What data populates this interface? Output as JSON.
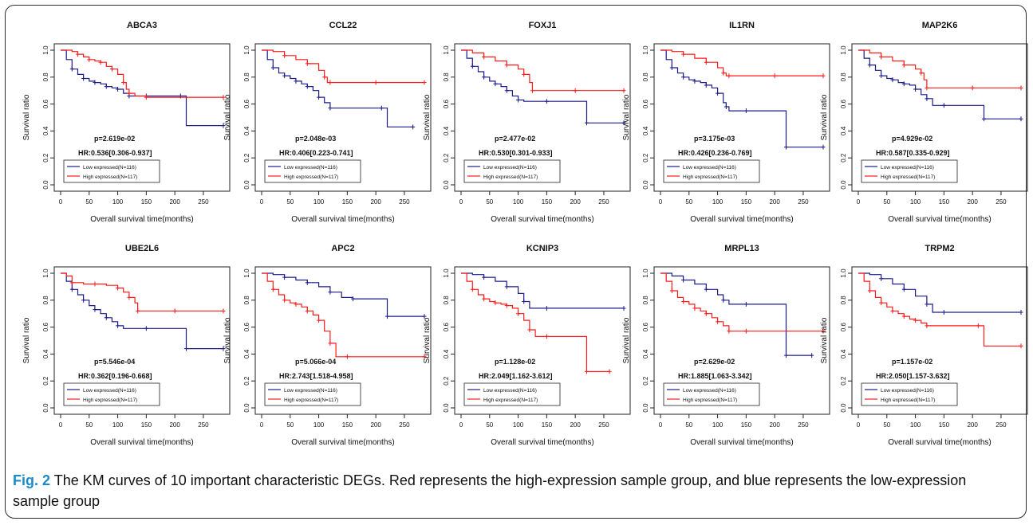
{
  "common": {
    "ylabel": "Survival ratio",
    "xlabel": "Overall survival time(months)",
    "xticks": [
      0,
      50,
      100,
      150,
      200,
      250
    ],
    "yticks": [
      0.0,
      0.2,
      0.4,
      0.6,
      0.8,
      1.0
    ],
    "ytick_labels": [
      "0.0",
      "0.2",
      "0.4",
      "0.6",
      "0.8",
      "1.0"
    ],
    "legend_low": "Low expressed(N=116)",
    "legend_high": "High expressed(N=117)",
    "low_color": "#1b1b8a",
    "high_color": "#ff1a1a"
  },
  "caption": {
    "label": "Fig. 2",
    "text": "The KM curves of 10 important characteristic DEGs. Red represents the high-expression sample group, and blue represents the low-expression sample group"
  },
  "chart_data": [
    {
      "type": "line",
      "title": "ABCA3",
      "p": "p=2.619e-02",
      "hr": "HR:0.536[0.306-0.937]",
      "xlim": [
        0,
        285
      ],
      "ylim": [
        0,
        1
      ],
      "series": [
        {
          "name": "Low expressed(N=116)",
          "x": [
            0,
            10,
            20,
            30,
            40,
            50,
            60,
            70,
            80,
            90,
            100,
            110,
            120,
            130,
            150,
            180,
            210,
            220,
            285
          ],
          "y": [
            1.0,
            0.93,
            0.86,
            0.82,
            0.79,
            0.77,
            0.76,
            0.75,
            0.73,
            0.72,
            0.71,
            0.68,
            0.66,
            0.66,
            0.66,
            0.66,
            0.66,
            0.44,
            0.44
          ]
        },
        {
          "name": "High expressed(N=117)",
          "x": [
            0,
            20,
            30,
            40,
            50,
            60,
            70,
            80,
            90,
            100,
            110,
            115,
            120,
            130,
            150,
            200,
            285
          ],
          "y": [
            1.0,
            0.99,
            0.97,
            0.95,
            0.93,
            0.92,
            0.91,
            0.88,
            0.86,
            0.82,
            0.76,
            0.71,
            0.68,
            0.66,
            0.65,
            0.65,
            0.65
          ]
        }
      ]
    },
    {
      "type": "line",
      "title": "CCL22",
      "p": "p=2.048e-03",
      "hr": "HR:0.406[0.223-0.741]",
      "xlim": [
        0,
        285
      ],
      "ylim": [
        0,
        1
      ],
      "series": [
        {
          "name": "Low expressed(N=116)",
          "x": [
            0,
            10,
            20,
            30,
            40,
            50,
            60,
            70,
            80,
            90,
            100,
            110,
            120,
            150,
            210,
            220,
            265
          ],
          "y": [
            1.0,
            0.93,
            0.87,
            0.83,
            0.81,
            0.79,
            0.77,
            0.75,
            0.73,
            0.7,
            0.65,
            0.61,
            0.57,
            0.57,
            0.57,
            0.43,
            0.43
          ]
        },
        {
          "name": "High expressed(N=117)",
          "x": [
            0,
            20,
            40,
            60,
            80,
            100,
            110,
            115,
            120,
            150,
            200,
            285
          ],
          "y": [
            1.0,
            0.99,
            0.96,
            0.93,
            0.9,
            0.85,
            0.8,
            0.76,
            0.76,
            0.76,
            0.76,
            0.76
          ]
        }
      ]
    },
    {
      "type": "line",
      "title": "FOXJ1",
      "p": "p=2.477e-02",
      "hr": "HR:0.530[0.301-0.933]",
      "xlim": [
        0,
        285
      ],
      "ylim": [
        0,
        1
      ],
      "series": [
        {
          "name": "Low expressed(N=116)",
          "x": [
            0,
            10,
            20,
            30,
            40,
            50,
            60,
            70,
            80,
            90,
            100,
            110,
            150,
            210,
            220,
            285
          ],
          "y": [
            1.0,
            0.94,
            0.88,
            0.84,
            0.8,
            0.77,
            0.75,
            0.73,
            0.7,
            0.66,
            0.63,
            0.62,
            0.62,
            0.62,
            0.46,
            0.46
          ]
        },
        {
          "name": "High expressed(N=117)",
          "x": [
            0,
            20,
            40,
            60,
            80,
            100,
            110,
            120,
            125,
            150,
            200,
            285
          ],
          "y": [
            1.0,
            0.98,
            0.95,
            0.92,
            0.89,
            0.86,
            0.82,
            0.76,
            0.7,
            0.7,
            0.7,
            0.7
          ]
        }
      ]
    },
    {
      "type": "line",
      "title": "IL1RN",
      "p": "p=3.175e-03",
      "hr": "HR:0.426[0.236-0.769]",
      "xlim": [
        0,
        285
      ],
      "ylim": [
        0,
        1
      ],
      "series": [
        {
          "name": "Low expressed(N=116)",
          "x": [
            0,
            10,
            20,
            30,
            40,
            50,
            60,
            70,
            80,
            90,
            100,
            110,
            115,
            120,
            150,
            210,
            220,
            285
          ],
          "y": [
            1.0,
            0.93,
            0.87,
            0.83,
            0.8,
            0.78,
            0.77,
            0.76,
            0.74,
            0.72,
            0.68,
            0.61,
            0.58,
            0.55,
            0.55,
            0.55,
            0.28,
            0.28
          ]
        },
        {
          "name": "High expressed(N=117)",
          "x": [
            0,
            20,
            40,
            60,
            80,
            100,
            110,
            115,
            120,
            150,
            200,
            285
          ],
          "y": [
            1.0,
            0.99,
            0.97,
            0.94,
            0.91,
            0.87,
            0.83,
            0.81,
            0.81,
            0.81,
            0.81,
            0.81
          ]
        }
      ]
    },
    {
      "type": "line",
      "title": "MAP2K6",
      "p": "p=4.929e-02",
      "hr": "HR:0.587[0.335-0.929]",
      "xlim": [
        0,
        285
      ],
      "ylim": [
        0,
        1
      ],
      "series": [
        {
          "name": "Low expressed(N=116)",
          "x": [
            0,
            10,
            20,
            30,
            40,
            50,
            60,
            70,
            80,
            90,
            100,
            110,
            120,
            130,
            150,
            210,
            220,
            285
          ],
          "y": [
            1.0,
            0.94,
            0.89,
            0.85,
            0.81,
            0.79,
            0.78,
            0.76,
            0.75,
            0.74,
            0.71,
            0.67,
            0.64,
            0.59,
            0.59,
            0.59,
            0.49,
            0.49
          ]
        },
        {
          "name": "High expressed(N=117)",
          "x": [
            0,
            20,
            40,
            60,
            80,
            100,
            110,
            115,
            120,
            150,
            200,
            285
          ],
          "y": [
            1.0,
            0.98,
            0.95,
            0.92,
            0.89,
            0.86,
            0.83,
            0.78,
            0.72,
            0.72,
            0.72,
            0.72
          ]
        }
      ]
    },
    {
      "type": "line",
      "title": "UBE2L6",
      "p": "p=5.546e-04",
      "hr": "HR:0.362[0.196-0.668]",
      "xlim": [
        0,
        285
      ],
      "ylim": [
        0,
        1
      ],
      "series": [
        {
          "name": "Low expressed(N=116)",
          "x": [
            0,
            10,
            20,
            30,
            40,
            50,
            60,
            70,
            80,
            90,
            100,
            110,
            150,
            210,
            220,
            285
          ],
          "y": [
            1.0,
            0.94,
            0.88,
            0.84,
            0.8,
            0.76,
            0.73,
            0.7,
            0.67,
            0.64,
            0.61,
            0.59,
            0.59,
            0.59,
            0.44,
            0.44
          ]
        },
        {
          "name": "High expressed(N=117)",
          "x": [
            0,
            10,
            20,
            40,
            60,
            80,
            100,
            110,
            120,
            130,
            135,
            150,
            200,
            285
          ],
          "y": [
            1.0,
            0.98,
            0.93,
            0.92,
            0.92,
            0.91,
            0.89,
            0.86,
            0.82,
            0.78,
            0.72,
            0.72,
            0.72,
            0.72
          ]
        }
      ]
    },
    {
      "type": "line",
      "title": "APC2",
      "p": "p=5.066e-04",
      "hr": "HR:2.743[1.518-4.958]",
      "xlim": [
        0,
        285
      ],
      "ylim": [
        0,
        1
      ],
      "series": [
        {
          "name": "Low expressed(N=116)",
          "x": [
            0,
            20,
            40,
            60,
            80,
            100,
            120,
            140,
            160,
            210,
            220,
            285
          ],
          "y": [
            1.0,
            0.99,
            0.97,
            0.95,
            0.93,
            0.9,
            0.86,
            0.82,
            0.81,
            0.81,
            0.68,
            0.68
          ]
        },
        {
          "name": "High expressed(N=117)",
          "x": [
            0,
            10,
            20,
            30,
            40,
            50,
            60,
            70,
            80,
            90,
            100,
            110,
            120,
            130,
            150,
            285
          ],
          "y": [
            1.0,
            0.94,
            0.88,
            0.84,
            0.8,
            0.78,
            0.77,
            0.75,
            0.72,
            0.69,
            0.65,
            0.57,
            0.48,
            0.38,
            0.38,
            0.38
          ]
        }
      ]
    },
    {
      "type": "line",
      "title": "KCNIP3",
      "p": "p=1.128e-02",
      "hr": "HR:2.049[1.162-3.612]",
      "xlim": [
        0,
        285
      ],
      "ylim": [
        0,
        1
      ],
      "series": [
        {
          "name": "Low expressed(N=116)",
          "x": [
            0,
            20,
            40,
            60,
            80,
            100,
            110,
            120,
            150,
            200,
            285
          ],
          "y": [
            1.0,
            0.99,
            0.97,
            0.94,
            0.9,
            0.85,
            0.79,
            0.74,
            0.74,
            0.74,
            0.74
          ]
        },
        {
          "name": "High expressed(N=117)",
          "x": [
            0,
            10,
            20,
            30,
            40,
            50,
            60,
            70,
            80,
            90,
            100,
            110,
            120,
            130,
            150,
            210,
            220,
            260
          ],
          "y": [
            1.0,
            0.94,
            0.88,
            0.84,
            0.81,
            0.79,
            0.78,
            0.77,
            0.76,
            0.74,
            0.7,
            0.65,
            0.58,
            0.53,
            0.53,
            0.53,
            0.27,
            0.27
          ]
        }
      ]
    },
    {
      "type": "line",
      "title": "MRPL13",
      "p": "p=2.629e-02",
      "hr": "HR:1.885[1.063-3.342]",
      "xlim": [
        0,
        285
      ],
      "ylim": [
        0,
        1
      ],
      "series": [
        {
          "name": "Low expressed(N=116)",
          "x": [
            0,
            20,
            40,
            60,
            80,
            100,
            110,
            120,
            150,
            210,
            220,
            265
          ],
          "y": [
            1.0,
            0.98,
            0.95,
            0.92,
            0.88,
            0.84,
            0.8,
            0.77,
            0.77,
            0.77,
            0.39,
            0.39
          ]
        },
        {
          "name": "High expressed(N=117)",
          "x": [
            0,
            10,
            20,
            30,
            40,
            50,
            60,
            70,
            80,
            90,
            100,
            110,
            120,
            130,
            150,
            200,
            285
          ],
          "y": [
            1.0,
            0.94,
            0.87,
            0.82,
            0.79,
            0.77,
            0.74,
            0.72,
            0.7,
            0.67,
            0.64,
            0.61,
            0.57,
            0.57,
            0.57,
            0.57,
            0.57
          ]
        }
      ]
    },
    {
      "type": "line",
      "title": "TRPM2",
      "p": "p=1.157e-02",
      "hr": "HR:2.050[1.157-3.632]",
      "xlim": [
        0,
        285
      ],
      "ylim": [
        0,
        1
      ],
      "series": [
        {
          "name": "Low expressed(N=116)",
          "x": [
            0,
            20,
            40,
            60,
            80,
            100,
            120,
            130,
            150,
            200,
            285
          ],
          "y": [
            1.0,
            0.99,
            0.96,
            0.92,
            0.88,
            0.83,
            0.77,
            0.71,
            0.71,
            0.71,
            0.71
          ]
        },
        {
          "name": "High expressed(N=117)",
          "x": [
            0,
            10,
            20,
            30,
            40,
            50,
            60,
            70,
            80,
            90,
            100,
            110,
            120,
            150,
            210,
            220,
            285
          ],
          "y": [
            1.0,
            0.94,
            0.87,
            0.82,
            0.78,
            0.75,
            0.72,
            0.7,
            0.68,
            0.66,
            0.65,
            0.63,
            0.61,
            0.61,
            0.61,
            0.46,
            0.46
          ]
        }
      ]
    }
  ]
}
